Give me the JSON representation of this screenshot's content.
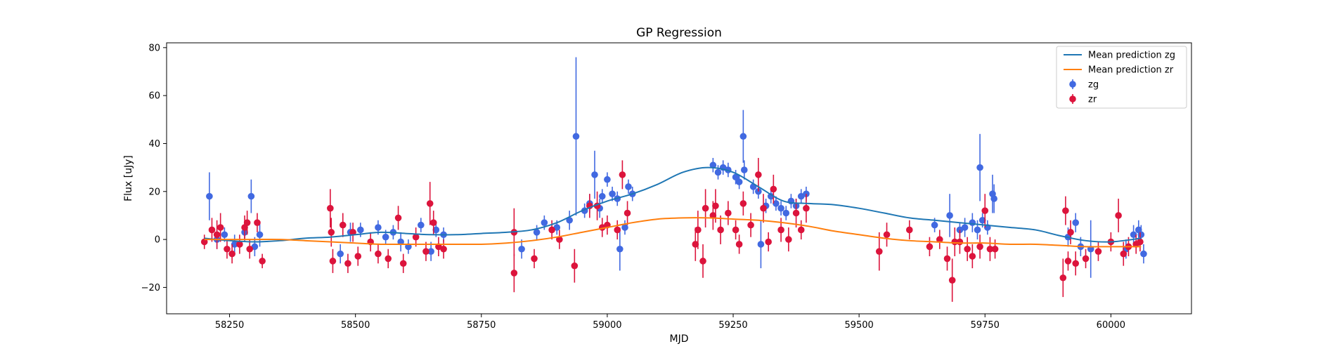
{
  "chart_data": {
    "type": "scatter",
    "title": "GP Regression",
    "xlabel": "MJD",
    "ylabel": "Flux [uJy]",
    "xlim": [
      58125,
      60160
    ],
    "ylim": [
      -31,
      82
    ],
    "xticks": [
      58250,
      58500,
      58750,
      59000,
      59250,
      59500,
      59750,
      60000
    ],
    "yticks": [
      -20,
      0,
      20,
      40,
      60,
      80
    ],
    "legend": "top-right",
    "colors": {
      "zg_line": "#1f77b4",
      "zr_line": "#ff7f0e",
      "zg_points": "#4169e1",
      "zr_points": "#dc143c"
    },
    "series": [
      {
        "name": "Mean prediction zg",
        "kind": "line",
        "x": [
          58200,
          58250,
          58300,
          58350,
          58400,
          58450,
          58500,
          58550,
          58600,
          58650,
          58700,
          58750,
          58800,
          58850,
          58900,
          58950,
          59000,
          59050,
          59100,
          59150,
          59200,
          59250,
          59300,
          59350,
          59400,
          59450,
          59500,
          59550,
          59600,
          59650,
          59700,
          59750,
          59800,
          59850,
          59900,
          59950,
          60000,
          60060
        ],
        "y": [
          0.5,
          -0.5,
          -1,
          -0.5,
          0.5,
          1,
          2,
          3,
          2.5,
          2,
          2,
          2.5,
          3,
          4,
          7,
          12,
          16,
          19,
          23,
          28,
          30,
          28,
          22,
          16,
          15,
          14.5,
          13,
          11,
          9,
          8,
          7,
          6,
          5,
          4,
          1.5,
          -0.5,
          -1,
          0.5
        ]
      },
      {
        "name": "Mean prediction zr",
        "kind": "line",
        "x": [
          58200,
          58250,
          58300,
          58350,
          58400,
          58450,
          58500,
          58550,
          58600,
          58650,
          58700,
          58750,
          58800,
          58850,
          58900,
          58950,
          59000,
          59050,
          59100,
          59150,
          59200,
          59250,
          59300,
          59350,
          59400,
          59450,
          59500,
          59550,
          59600,
          59650,
          59700,
          59750,
          59800,
          59850,
          59900,
          59950,
          60000,
          60060
        ],
        "y": [
          0,
          0,
          0,
          0,
          -0.5,
          -1,
          -1.5,
          -2,
          -2,
          -2,
          -2,
          -2,
          -1.5,
          -0.5,
          1,
          3,
          5,
          7,
          8.5,
          9,
          9,
          8.5,
          8,
          7,
          5.5,
          3.5,
          2,
          0.5,
          -0.5,
          -1,
          -1.5,
          -1.5,
          -2,
          -2,
          -2.5,
          -3,
          -3,
          -3
        ]
      },
      {
        "name": "zg",
        "kind": "errorbar",
        "points": [
          {
            "x": 58210,
            "y": 18,
            "e": 10
          },
          {
            "x": 58225,
            "y": 0,
            "e": 4
          },
          {
            "x": 58240,
            "y": 2,
            "e": 3
          },
          {
            "x": 58260,
            "y": -2,
            "e": 4
          },
          {
            "x": 58280,
            "y": 3,
            "e": 4
          },
          {
            "x": 58293,
            "y": 18,
            "e": 7
          },
          {
            "x": 58300,
            "y": -3,
            "e": 4
          },
          {
            "x": 58310,
            "y": 2,
            "e": 5
          },
          {
            "x": 58470,
            "y": -6,
            "e": 4
          },
          {
            "x": 58490,
            "y": 3,
            "e": 4
          },
          {
            "x": 58510,
            "y": 4,
            "e": 3
          },
          {
            "x": 58545,
            "y": 5,
            "e": 3
          },
          {
            "x": 58560,
            "y": 1,
            "e": 3
          },
          {
            "x": 58575,
            "y": 3,
            "e": 3
          },
          {
            "x": 58590,
            "y": -1,
            "e": 4
          },
          {
            "x": 58605,
            "y": -3,
            "e": 3
          },
          {
            "x": 58630,
            "y": 6,
            "e": 3
          },
          {
            "x": 58650,
            "y": -5,
            "e": 4
          },
          {
            "x": 58660,
            "y": 4,
            "e": 3
          },
          {
            "x": 58675,
            "y": 2,
            "e": 3
          },
          {
            "x": 58830,
            "y": -4,
            "e": 4
          },
          {
            "x": 58860,
            "y": 3,
            "e": 3
          },
          {
            "x": 58875,
            "y": 7,
            "e": 3
          },
          {
            "x": 58900,
            "y": 5,
            "e": 3
          },
          {
            "x": 58925,
            "y": 8,
            "e": 4
          },
          {
            "x": 58938,
            "y": 43,
            "e": 33
          },
          {
            "x": 58955,
            "y": 12,
            "e": 3
          },
          {
            "x": 58965,
            "y": 15,
            "e": 4
          },
          {
            "x": 58975,
            "y": 27,
            "e": 10
          },
          {
            "x": 58985,
            "y": 13,
            "e": 4
          },
          {
            "x": 58990,
            "y": 18,
            "e": 3
          },
          {
            "x": 59000,
            "y": 25,
            "e": 3
          },
          {
            "x": 59010,
            "y": 19,
            "e": 3
          },
          {
            "x": 59020,
            "y": 17,
            "e": 3
          },
          {
            "x": 59025,
            "y": -4,
            "e": 9
          },
          {
            "x": 59035,
            "y": 5,
            "e": 3
          },
          {
            "x": 59042,
            "y": 22,
            "e": 3
          },
          {
            "x": 59050,
            "y": 19,
            "e": 3
          },
          {
            "x": 59210,
            "y": 31,
            "e": 3
          },
          {
            "x": 59220,
            "y": 28,
            "e": 3
          },
          {
            "x": 59230,
            "y": 30,
            "e": 3
          },
          {
            "x": 59240,
            "y": 29,
            "e": 3
          },
          {
            "x": 59255,
            "y": 26,
            "e": 3
          },
          {
            "x": 59262,
            "y": 24,
            "e": 3
          },
          {
            "x": 59270,
            "y": 43,
            "e": 11
          },
          {
            "x": 59272,
            "y": 29,
            "e": 4
          },
          {
            "x": 59290,
            "y": 22,
            "e": 3
          },
          {
            "x": 59300,
            "y": 20,
            "e": 3
          },
          {
            "x": 59305,
            "y": -2,
            "e": 10
          },
          {
            "x": 59315,
            "y": 14,
            "e": 3
          },
          {
            "x": 59325,
            "y": 18,
            "e": 3
          },
          {
            "x": 59335,
            "y": 15,
            "e": 3
          },
          {
            "x": 59345,
            "y": 13,
            "e": 3
          },
          {
            "x": 59355,
            "y": 11,
            "e": 3
          },
          {
            "x": 59365,
            "y": 16,
            "e": 3
          },
          {
            "x": 59375,
            "y": 14,
            "e": 3
          },
          {
            "x": 59385,
            "y": 18,
            "e": 3
          },
          {
            "x": 59395,
            "y": 19,
            "e": 3
          },
          {
            "x": 59650,
            "y": 6,
            "e": 3
          },
          {
            "x": 59680,
            "y": 10,
            "e": 9
          },
          {
            "x": 59700,
            "y": 4,
            "e": 3
          },
          {
            "x": 59710,
            "y": 5,
            "e": 4
          },
          {
            "x": 59725,
            "y": 7,
            "e": 4
          },
          {
            "x": 59735,
            "y": 4,
            "e": 4
          },
          {
            "x": 59740,
            "y": 30,
            "e": 14
          },
          {
            "x": 59745,
            "y": 8,
            "e": 3
          },
          {
            "x": 59755,
            "y": 5,
            "e": 3
          },
          {
            "x": 59765,
            "y": 19,
            "e": 8
          },
          {
            "x": 59768,
            "y": 17,
            "e": 6
          },
          {
            "x": 59915,
            "y": 1,
            "e": 4
          },
          {
            "x": 59930,
            "y": 7,
            "e": 4
          },
          {
            "x": 59940,
            "y": -3,
            "e": 4
          },
          {
            "x": 59960,
            "y": -4,
            "e": 12
          },
          {
            "x": 60030,
            "y": -4,
            "e": 4
          },
          {
            "x": 60045,
            "y": 2,
            "e": 4
          },
          {
            "x": 60055,
            "y": 4,
            "e": 4
          },
          {
            "x": 60060,
            "y": 2,
            "e": 4
          },
          {
            "x": 60065,
            "y": -6,
            "e": 4
          }
        ]
      },
      {
        "name": "zr",
        "kind": "errorbar",
        "points": [
          {
            "x": 58200,
            "y": -1,
            "e": 3
          },
          {
            "x": 58215,
            "y": 4,
            "e": 5
          },
          {
            "x": 58225,
            "y": 2,
            "e": 6
          },
          {
            "x": 58232,
            "y": 5,
            "e": 6
          },
          {
            "x": 58245,
            "y": -4,
            "e": 4
          },
          {
            "x": 58255,
            "y": -6,
            "e": 4
          },
          {
            "x": 58270,
            "y": -2,
            "e": 4
          },
          {
            "x": 58280,
            "y": 5,
            "e": 5
          },
          {
            "x": 58285,
            "y": 7,
            "e": 5
          },
          {
            "x": 58290,
            "y": -4,
            "e": 4
          },
          {
            "x": 58305,
            "y": 7,
            "e": 4
          },
          {
            "x": 58315,
            "y": -9,
            "e": 3
          },
          {
            "x": 58450,
            "y": 13,
            "e": 8
          },
          {
            "x": 58452,
            "y": 3,
            "e": 6
          },
          {
            "x": 58455,
            "y": -9,
            "e": 5
          },
          {
            "x": 58475,
            "y": 6,
            "e": 5
          },
          {
            "x": 58485,
            "y": -10,
            "e": 4
          },
          {
            "x": 58495,
            "y": 3,
            "e": 4
          },
          {
            "x": 58505,
            "y": -7,
            "e": 4
          },
          {
            "x": 58530,
            "y": -1,
            "e": 4
          },
          {
            "x": 58545,
            "y": -6,
            "e": 4
          },
          {
            "x": 58565,
            "y": -8,
            "e": 4
          },
          {
            "x": 58585,
            "y": 9,
            "e": 5
          },
          {
            "x": 58595,
            "y": -10,
            "e": 4
          },
          {
            "x": 58620,
            "y": 1,
            "e": 4
          },
          {
            "x": 58640,
            "y": -5,
            "e": 4
          },
          {
            "x": 58648,
            "y": 15,
            "e": 9
          },
          {
            "x": 58655,
            "y": 7,
            "e": 5
          },
          {
            "x": 58665,
            "y": -3,
            "e": 4
          },
          {
            "x": 58675,
            "y": -4,
            "e": 4
          },
          {
            "x": 58815,
            "y": -14,
            "e": 8
          },
          {
            "x": 58815,
            "y": 3,
            "e": 10
          },
          {
            "x": 58855,
            "y": -8,
            "e": 4
          },
          {
            "x": 58890,
            "y": 4,
            "e": 4
          },
          {
            "x": 58905,
            "y": 0,
            "e": 4
          },
          {
            "x": 58935,
            "y": -11,
            "e": 7
          },
          {
            "x": 58965,
            "y": 14,
            "e": 5
          },
          {
            "x": 58980,
            "y": 14,
            "e": 6
          },
          {
            "x": 58990,
            "y": 5,
            "e": 4
          },
          {
            "x": 59000,
            "y": 6,
            "e": 4
          },
          {
            "x": 59020,
            "y": 4,
            "e": 4
          },
          {
            "x": 59030,
            "y": 27,
            "e": 6
          },
          {
            "x": 59040,
            "y": 11,
            "e": 5
          },
          {
            "x": 59175,
            "y": -2,
            "e": 7
          },
          {
            "x": 59180,
            "y": 4,
            "e": 8
          },
          {
            "x": 59190,
            "y": -9,
            "e": 7
          },
          {
            "x": 59195,
            "y": 13,
            "e": 8
          },
          {
            "x": 59210,
            "y": 10,
            "e": 6
          },
          {
            "x": 59215,
            "y": 14,
            "e": 7
          },
          {
            "x": 59225,
            "y": 4,
            "e": 6
          },
          {
            "x": 59240,
            "y": 11,
            "e": 5
          },
          {
            "x": 59255,
            "y": 4,
            "e": 4
          },
          {
            "x": 59262,
            "y": -2,
            "e": 4
          },
          {
            "x": 59270,
            "y": 15,
            "e": 5
          },
          {
            "x": 59285,
            "y": 6,
            "e": 5
          },
          {
            "x": 59300,
            "y": 27,
            "e": 7
          },
          {
            "x": 59310,
            "y": 13,
            "e": 6
          },
          {
            "x": 59320,
            "y": -1,
            "e": 4
          },
          {
            "x": 59330,
            "y": 21,
            "e": 6
          },
          {
            "x": 59345,
            "y": 4,
            "e": 5
          },
          {
            "x": 59360,
            "y": 0,
            "e": 5
          },
          {
            "x": 59375,
            "y": 11,
            "e": 6
          },
          {
            "x": 59385,
            "y": 4,
            "e": 4
          },
          {
            "x": 59395,
            "y": 13,
            "e": 6
          },
          {
            "x": 59540,
            "y": -5,
            "e": 8
          },
          {
            "x": 59555,
            "y": 2,
            "e": 5
          },
          {
            "x": 59600,
            "y": 4,
            "e": 4
          },
          {
            "x": 59640,
            "y": -3,
            "e": 4
          },
          {
            "x": 59660,
            "y": 0,
            "e": 4
          },
          {
            "x": 59675,
            "y": -8,
            "e": 5
          },
          {
            "x": 59685,
            "y": -17,
            "e": 9
          },
          {
            "x": 59690,
            "y": -1,
            "e": 6
          },
          {
            "x": 59700,
            "y": -1,
            "e": 5
          },
          {
            "x": 59715,
            "y": -4,
            "e": 5
          },
          {
            "x": 59725,
            "y": -7,
            "e": 5
          },
          {
            "x": 59740,
            "y": -3,
            "e": 5
          },
          {
            "x": 59750,
            "y": 12,
            "e": 7
          },
          {
            "x": 59760,
            "y": -4,
            "e": 5
          },
          {
            "x": 59770,
            "y": -4,
            "e": 4
          },
          {
            "x": 59905,
            "y": -16,
            "e": 8
          },
          {
            "x": 59910,
            "y": 12,
            "e": 6
          },
          {
            "x": 59915,
            "y": -9,
            "e": 4
          },
          {
            "x": 59920,
            "y": 3,
            "e": 5
          },
          {
            "x": 59930,
            "y": -10,
            "e": 5
          },
          {
            "x": 59950,
            "y": -8,
            "e": 4
          },
          {
            "x": 59975,
            "y": -5,
            "e": 4
          },
          {
            "x": 60000,
            "y": -1,
            "e": 4
          },
          {
            "x": 60015,
            "y": 10,
            "e": 7
          },
          {
            "x": 60025,
            "y": -6,
            "e": 5
          },
          {
            "x": 60035,
            "y": -3,
            "e": 4
          },
          {
            "x": 60050,
            "y": -2,
            "e": 4
          },
          {
            "x": 60058,
            "y": -1,
            "e": 4
          }
        ]
      }
    ]
  }
}
